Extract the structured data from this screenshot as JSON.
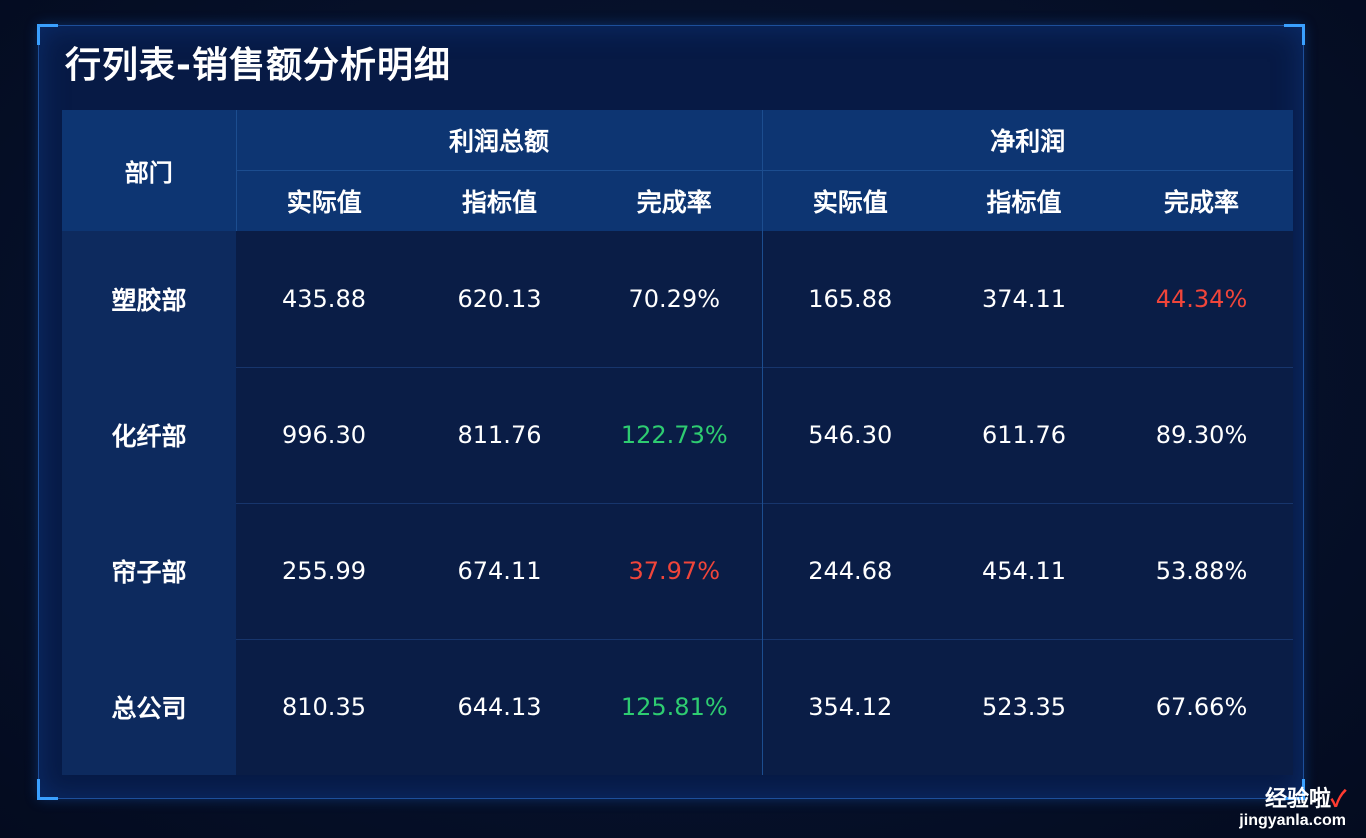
{
  "title": "行列表-销售额分析明细",
  "table": {
    "dept_header": "部门",
    "groups": [
      {
        "label": "利润总额",
        "subs": [
          "实际值",
          "指标值",
          "完成率"
        ]
      },
      {
        "label": "净利润",
        "subs": [
          "实际值",
          "指标值",
          "完成率"
        ]
      }
    ],
    "rows": [
      {
        "dept": "塑胶部",
        "values": [
          "435.88",
          "620.13",
          "70.29%",
          "165.88",
          "374.11",
          "44.34%"
        ],
        "status": [
          "normal",
          "normal",
          "normal",
          "normal",
          "normal",
          "low"
        ]
      },
      {
        "dept": "化纤部",
        "values": [
          "996.30",
          "811.76",
          "122.73%",
          "546.30",
          "611.76",
          "89.30%"
        ],
        "status": [
          "normal",
          "normal",
          "high",
          "normal",
          "normal",
          "normal"
        ]
      },
      {
        "dept": "帘子部",
        "values": [
          "255.99",
          "674.11",
          "37.97%",
          "244.68",
          "454.11",
          "53.88%"
        ],
        "status": [
          "normal",
          "normal",
          "low",
          "normal",
          "normal",
          "normal"
        ]
      },
      {
        "dept": "总公司",
        "values": [
          "810.35",
          "644.13",
          "125.81%",
          "354.12",
          "523.35",
          "67.66%"
        ],
        "status": [
          "normal",
          "normal",
          "high",
          "normal",
          "normal",
          "normal"
        ]
      }
    ]
  },
  "colors": {
    "normal": "#ffffff",
    "high": "#2ecc71",
    "low": "#f0453a"
  },
  "watermark": {
    "cn": "经验啦",
    "check": "✓",
    "url": "jingyanla.com"
  }
}
